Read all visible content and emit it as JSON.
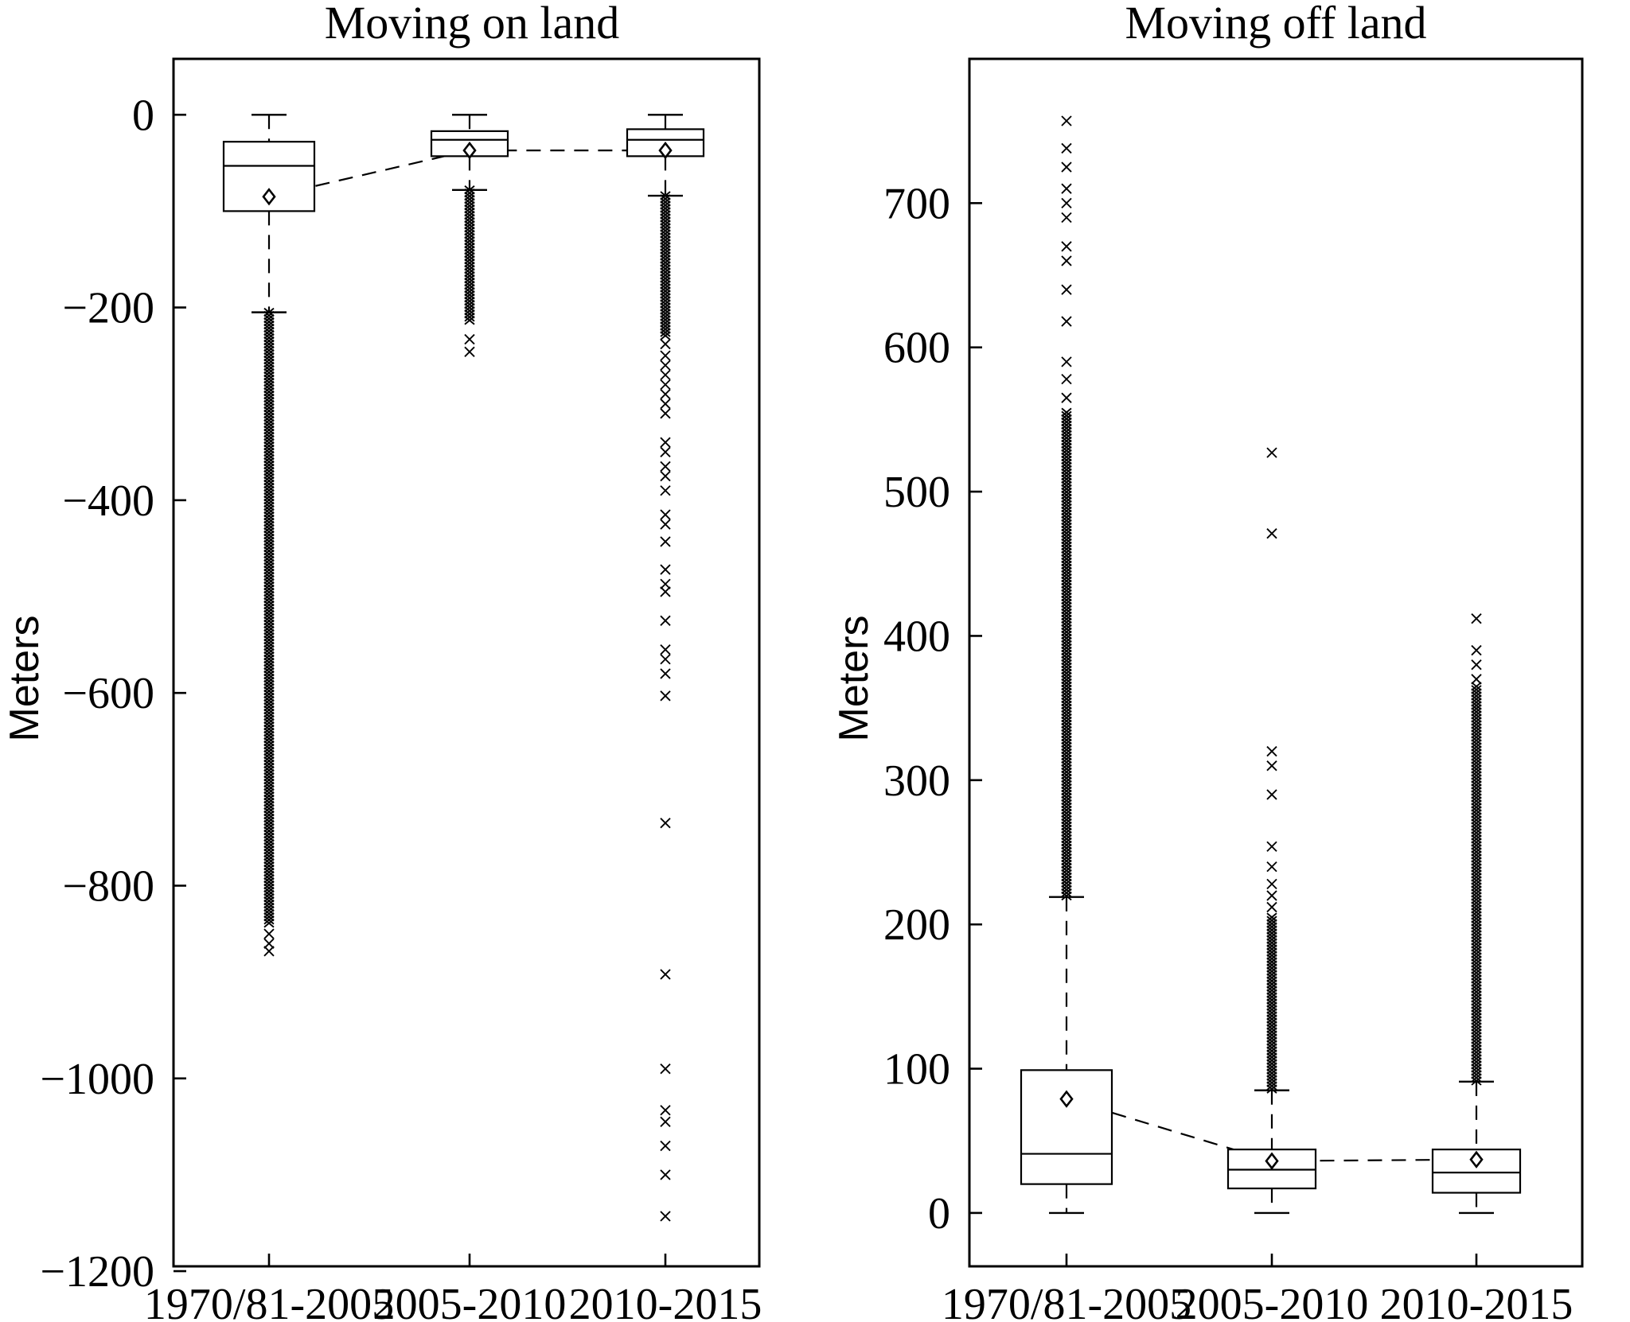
{
  "chart_data": [
    {
      "type": "box",
      "title": "Moving on land",
      "ylabel": "Meters",
      "ylim": [
        -1195,
        58
      ],
      "yticks": [
        0,
        -200,
        -400,
        -600,
        -800,
        -1000,
        -1200
      ],
      "ytick_labels": [
        "0",
        "−200",
        "−400",
        "−600",
        "−800",
        "−1000",
        "−1200"
      ],
      "categories": [
        "1970/81-2005",
        "2005-2010",
        "2010-2015"
      ],
      "boxes": [
        {
          "category": "1970/81-2005",
          "whisker_high": 0,
          "q3": -28,
          "median": -53,
          "q1": -100,
          "whisker_low": -205,
          "mean": -85,
          "outlier_bands": [
            [
              -205,
              -840
            ]
          ],
          "outliers": [
            -850,
            -860,
            -868
          ]
        },
        {
          "category": "2005-2010",
          "whisker_high": 0,
          "q3": -17,
          "median": -26,
          "q1": -43,
          "whisker_low": -78,
          "mean": -37,
          "outlier_bands": [
            [
              -78,
              -215
            ]
          ],
          "outliers": [
            -233,
            -246
          ]
        },
        {
          "category": "2010-2015",
          "whisker_high": 0,
          "q3": -15,
          "median": -26,
          "q1": -43,
          "whisker_low": -84,
          "mean": -37,
          "outlier_bands": [
            [
              -84,
              -230
            ]
          ],
          "outliers": [
            -238,
            -250,
            -260,
            -270,
            -280,
            -290,
            -300,
            -310,
            -340,
            -350,
            -365,
            -375,
            -390,
            -415,
            -425,
            -443,
            -472,
            -487,
            -495,
            -525,
            -555,
            -565,
            -580,
            -603,
            -735,
            -892,
            -990,
            -1033,
            -1045,
            -1070,
            -1100,
            -1143
          ]
        }
      ]
    },
    {
      "type": "box",
      "title": "Moving off land",
      "ylabel": "Meters",
      "ylim": [
        -37,
        800
      ],
      "yticks": [
        0,
        100,
        200,
        300,
        400,
        500,
        600,
        700
      ],
      "ytick_labels": [
        "0",
        "100",
        "200",
        "300",
        "400",
        "500",
        "600",
        "700"
      ],
      "categories": [
        "1970/81-2005",
        "2005-2010",
        "2010-2015"
      ],
      "boxes": [
        {
          "category": "1970/81-2005",
          "whisker_low": 0,
          "q1": 20,
          "median": 41,
          "q3": 99,
          "whisker_high": 219,
          "mean": 79,
          "outlier_bands": [
            [
              219,
              555
            ]
          ],
          "outliers": [
            565,
            578,
            590,
            618,
            640,
            660,
            670,
            690,
            700,
            710,
            725,
            738,
            757
          ]
        },
        {
          "category": "2005-2010",
          "whisker_low": 0,
          "q1": 17,
          "median": 30,
          "q3": 44,
          "whisker_high": 85,
          "mean": 36,
          "outlier_bands": [
            [
              85,
              205
            ]
          ],
          "outliers": [
            212,
            220,
            228,
            240,
            254,
            290,
            310,
            320,
            471,
            527
          ]
        },
        {
          "category": "2010-2015",
          "whisker_low": 0,
          "q1": 14,
          "median": 28,
          "q3": 44,
          "whisker_high": 91,
          "mean": 37,
          "outlier_bands": [
            [
              91,
              365
            ]
          ],
          "outliers": [
            370,
            380,
            390,
            412
          ]
        }
      ]
    }
  ]
}
